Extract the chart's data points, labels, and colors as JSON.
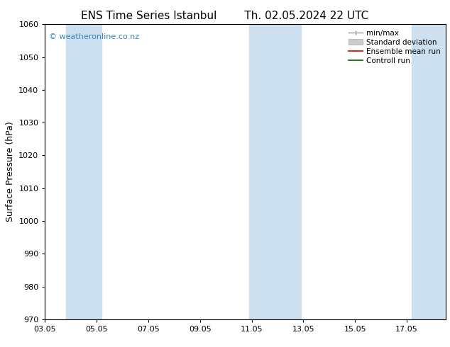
{
  "title_left": "ENS Time Series Istanbul",
  "title_right": "Th. 02.05.2024 22 UTC",
  "ylabel": "Surface Pressure (hPa)",
  "ylim": [
    970,
    1060
  ],
  "yticks": [
    970,
    980,
    990,
    1000,
    1010,
    1020,
    1030,
    1040,
    1050,
    1060
  ],
  "xlim_start": 0.0,
  "xlim_end": 15.5,
  "xtick_labels": [
    "03.05",
    "05.05",
    "07.05",
    "09.05",
    "11.05",
    "13.05",
    "15.05",
    "17.05"
  ],
  "xtick_positions": [
    0,
    2,
    4,
    6,
    8,
    10,
    12,
    14
  ],
  "shaded_bands": [
    {
      "x_start": 0.8,
      "x_end": 2.2
    },
    {
      "x_start": 7.9,
      "x_end": 9.9
    },
    {
      "x_start": 14.2,
      "x_end": 15.5
    }
  ],
  "shade_color": "#cce0f0",
  "background_color": "#ffffff",
  "watermark_text": "© weatheronline.co.nz",
  "watermark_color": "#3388bb",
  "title_fontsize": 11,
  "axis_label_fontsize": 9,
  "tick_fontsize": 8,
  "legend_fontsize": 7.5
}
